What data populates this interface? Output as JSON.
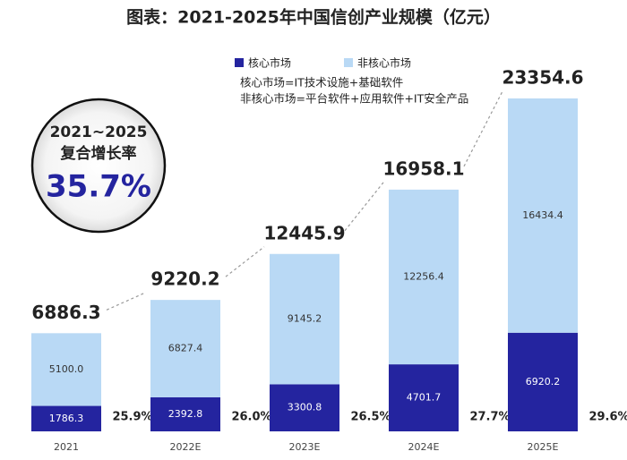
{
  "chart_data": {
    "type": "stacked_bar",
    "title": "图表：2021-2025年中国信创产业规模（亿元）",
    "categories": [
      "2021",
      "2022E",
      "2023E",
      "2024E",
      "2025E"
    ],
    "series": [
      {
        "name": "核心市场",
        "color": "#24249f",
        "values": [
          1786.3,
          2392.8,
          3300.8,
          4701.7,
          6920.2
        ]
      },
      {
        "name": "非核心市场",
        "color": "#b9d9f5",
        "values": [
          5100.0,
          6827.4,
          9145.2,
          12256.4,
          16434.4
        ],
        "value_labels": [
          "5100.0",
          "6827.4",
          "9145.2",
          "12256.4",
          "16434.4"
        ]
      }
    ],
    "totals": [
      6886.3,
      9220.2,
      12445.9,
      16958.1,
      23354.6
    ],
    "core_share": {
      "values": [
        25.9,
        26.0,
        26.5,
        27.7,
        29.6
      ],
      "value_labels": [
        "25.9%",
        "26.0%",
        "26.5%",
        "27.7%",
        "29.6%"
      ]
    },
    "notes": [
      "核心市场=IT技术设施+基础软件",
      "非核心市场=平台软件+应用软件+IT安全产品"
    ],
    "annotation": {
      "lines": [
        "2021~2025",
        "复合增长率"
      ],
      "value": "35.7%"
    }
  }
}
